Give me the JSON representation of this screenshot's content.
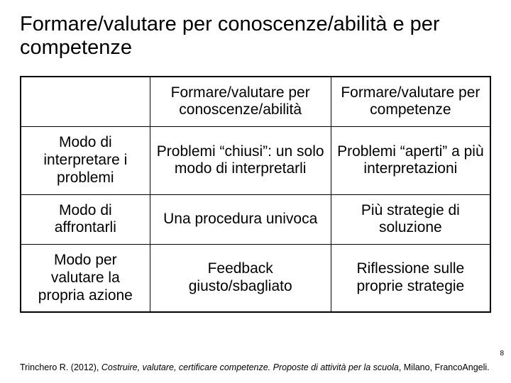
{
  "title": "Formare/valutare per conoscenze/abilità e per competenze",
  "table": {
    "columns": [
      "",
      "Formare/valutare per conoscenze/abilità",
      "Formare/valutare per competenze"
    ],
    "rows": [
      [
        "Modo di interpretare i problemi",
        "Problemi “chiusi”: un solo modo di interpretarli",
        "Problemi “aperti” a più interpretazioni"
      ],
      [
        "Modo di affrontarli",
        "Una procedura univoca",
        "Più strategie di soluzione"
      ],
      [
        "Modo per valutare la propria azione",
        "Feedback giusto/sbagliato",
        "Riflessione sulle proprie strategie"
      ]
    ]
  },
  "page_number": "8",
  "citation": {
    "author": "Trinchero R. (2012), ",
    "title_italic": "Costruire, valutare, certificare competenze. Proposte di attività per la scuola",
    "tail": ", Milano, FrancoAngeli."
  }
}
